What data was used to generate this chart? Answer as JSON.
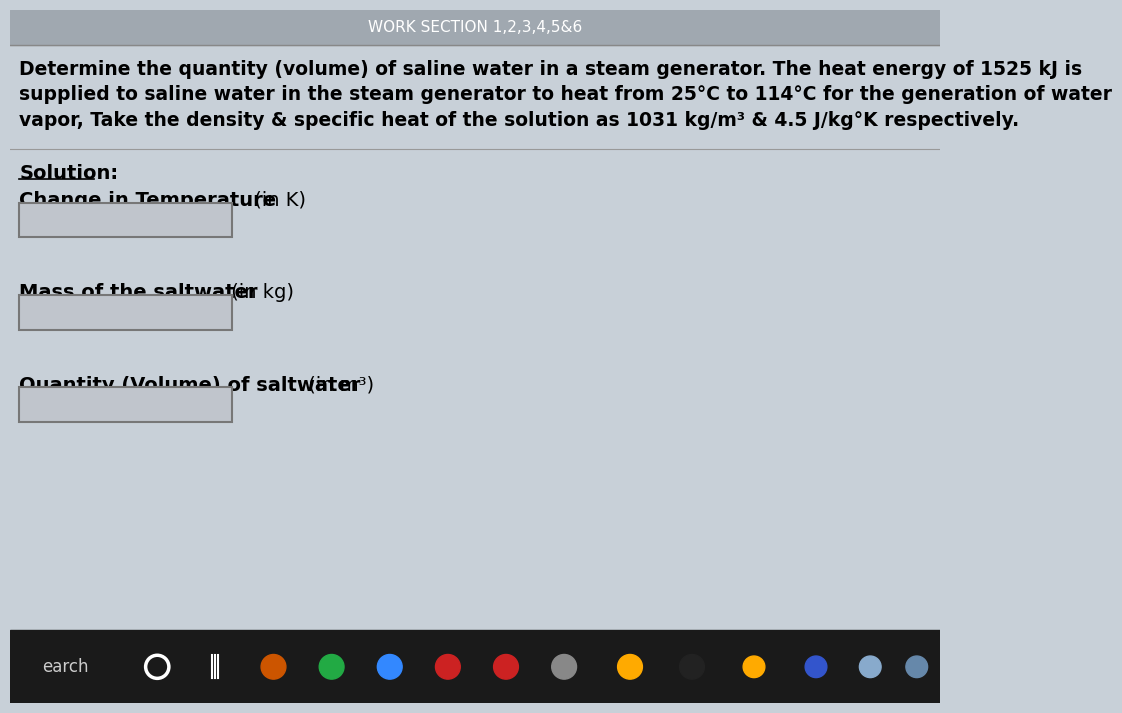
{
  "bg_color": "#c8d0d8",
  "top_bar_color": "#a0a8b0",
  "top_text": "WORK SECTION 1,2,3,4,5&6",
  "problem_line1": "Determine the quantity (volume) of saline water in a steam generator. The heat energy of 1525 kJ is",
  "problem_line2": "supplied to saline water in the steam generator to heat from 25°C to 114°C for the generation of water",
  "problem_line3": "vapor, Take the density & specific heat of the solution as 1031 kg/m³ & 4.5 J/kg°K respectively.",
  "solution_label": "Solution:",
  "field1_label_bold": "Change in Temperature",
  "field1_label_normal": " (in K)",
  "field2_label_bold": "Mass of the saltwater",
  "field2_label_normal": " (in kg)",
  "field3_label_bold": "Quantity (Volume) of saltwater",
  "field3_label_normal": " (in m³)",
  "taskbar_color": "#1a1a1a",
  "taskbar_search": "earch",
  "box_bg": "#c0c5cc",
  "box_border": "#777777",
  "text_color": "#000000"
}
